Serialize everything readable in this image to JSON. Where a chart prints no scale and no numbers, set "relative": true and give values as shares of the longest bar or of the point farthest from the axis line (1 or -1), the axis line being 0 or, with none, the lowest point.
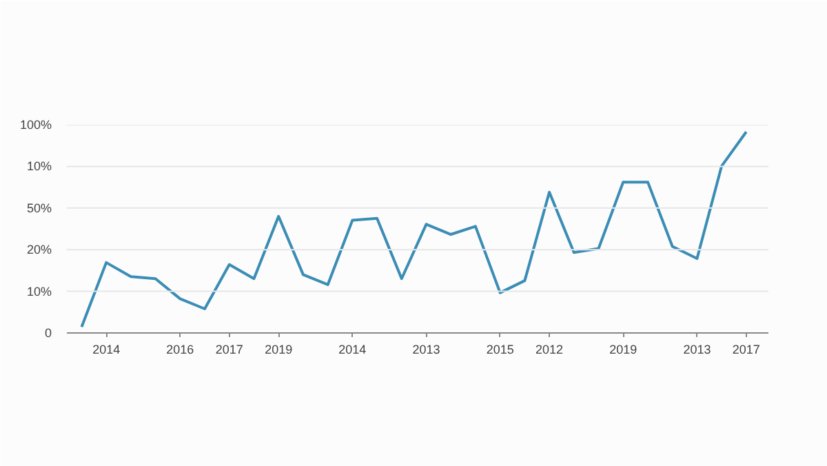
{
  "chart_data": {
    "type": "line",
    "color": "#3b8db5",
    "relative": true,
    "categories": [
      null,
      "2014",
      null,
      null,
      "2016",
      null,
      "2017",
      null,
      "2019",
      null,
      null,
      "2014",
      null,
      null,
      "2013",
      null,
      null,
      "2015",
      null,
      "2012",
      null,
      null,
      "2019",
      null,
      null,
      "2013",
      null,
      "2017"
    ],
    "values": [
      0.03,
      0.35,
      0.28,
      0.27,
      0.17,
      0.12,
      0.34,
      0.27,
      0.58,
      0.29,
      0.24,
      0.56,
      0.57,
      0.27,
      0.54,
      0.49,
      0.53,
      0.2,
      0.26,
      0.7,
      0.4,
      0.42,
      0.75,
      0.75,
      0.43,
      0.37,
      0.83,
      1
    ],
    "annotations": [
      "0",
      "10%",
      "20%",
      "50%",
      "10%",
      "100%"
    ],
    "grid": "y",
    "marker": "none",
    "line_style": "solid"
  }
}
